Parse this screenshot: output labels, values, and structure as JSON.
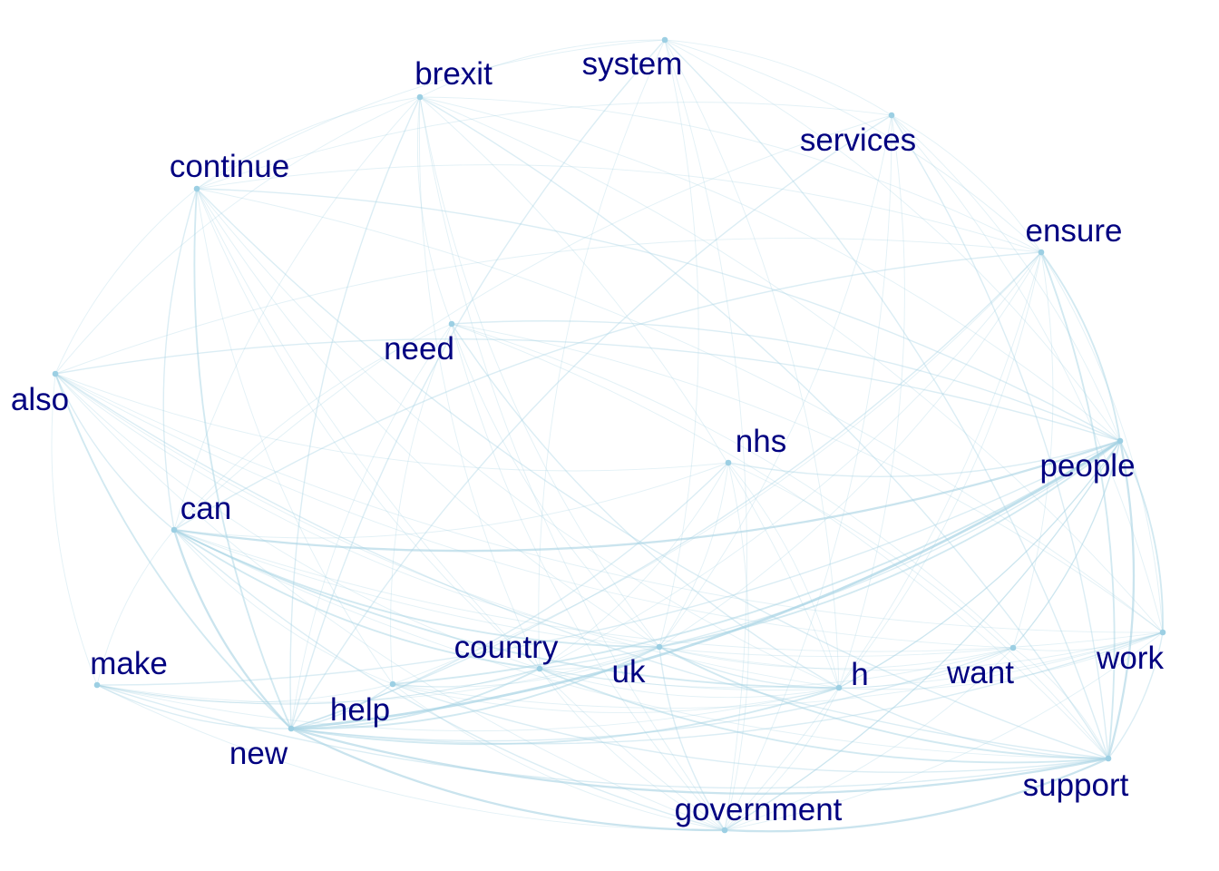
{
  "colors": {
    "edge": "#a9d4e4",
    "node": "#9ccfe3",
    "label": "#000080",
    "background": "#ffffff"
  },
  "nodes": [
    {
      "id": "brexit",
      "label": "brexit"
    },
    {
      "id": "system",
      "label": "system"
    },
    {
      "id": "services",
      "label": "services"
    },
    {
      "id": "continue",
      "label": "continue"
    },
    {
      "id": "ensure",
      "label": "ensure"
    },
    {
      "id": "need",
      "label": "need"
    },
    {
      "id": "also",
      "label": "also"
    },
    {
      "id": "nhs",
      "label": "nhs"
    },
    {
      "id": "people",
      "label": "people"
    },
    {
      "id": "can",
      "label": "can"
    },
    {
      "id": "country",
      "label": "country"
    },
    {
      "id": "make",
      "label": "make"
    },
    {
      "id": "uk",
      "label": "uk"
    },
    {
      "id": "h",
      "label": "h"
    },
    {
      "id": "want",
      "label": "want"
    },
    {
      "id": "work",
      "label": "work"
    },
    {
      "id": "help",
      "label": "help"
    },
    {
      "id": "new",
      "label": "new"
    },
    {
      "id": "support",
      "label": "support"
    },
    {
      "id": "government",
      "label": "government"
    }
  ],
  "edges": [
    [
      "new",
      "people",
      5
    ],
    [
      "new",
      "can",
      4
    ],
    [
      "can",
      "people",
      4
    ],
    [
      "new",
      "support",
      4
    ],
    [
      "new",
      "government",
      4
    ],
    [
      "government",
      "support",
      4
    ],
    [
      "people",
      "support",
      4
    ],
    [
      "uk",
      "people",
      3
    ],
    [
      "can",
      "uk",
      3
    ],
    [
      "can",
      "h",
      3
    ],
    [
      "new",
      "uk",
      3
    ],
    [
      "also",
      "new",
      3
    ],
    [
      "continue",
      "new",
      3
    ],
    [
      "new",
      "h",
      3
    ],
    [
      "people",
      "work",
      3
    ],
    [
      "ensure",
      "support",
      3
    ],
    [
      "ensure",
      "people",
      3
    ],
    [
      "new",
      "country",
      3
    ],
    [
      "can",
      "country",
      3
    ],
    [
      "help",
      "people",
      3
    ],
    [
      "country",
      "support",
      3
    ],
    [
      "uk",
      "support",
      3
    ],
    [
      "need",
      "people",
      2
    ],
    [
      "need",
      "h",
      2
    ],
    [
      "brexit",
      "support",
      2
    ],
    [
      "brexit",
      "new",
      2
    ],
    [
      "system",
      "new",
      2
    ],
    [
      "system",
      "support",
      2
    ],
    [
      "services",
      "support",
      2
    ],
    [
      "services",
      "new",
      2
    ],
    [
      "continue",
      "people",
      2
    ],
    [
      "continue",
      "support",
      2
    ],
    [
      "also",
      "people",
      2
    ],
    [
      "also",
      "support",
      2
    ],
    [
      "also",
      "can",
      2
    ],
    [
      "make",
      "new",
      2
    ],
    [
      "make",
      "people",
      2
    ],
    [
      "make",
      "support",
      2
    ],
    [
      "nhs",
      "people",
      2
    ],
    [
      "nhs",
      "new",
      2
    ],
    [
      "want",
      "people",
      2
    ],
    [
      "want",
      "new",
      2
    ],
    [
      "work",
      "new",
      2
    ],
    [
      "work",
      "support",
      2
    ],
    [
      "h",
      "support",
      2
    ],
    [
      "h",
      "people",
      2
    ],
    [
      "help",
      "new",
      2
    ],
    [
      "help",
      "support",
      2
    ],
    [
      "country",
      "people",
      2
    ],
    [
      "uk",
      "h",
      2
    ],
    [
      "government",
      "people",
      2
    ],
    [
      "government",
      "uk",
      2
    ],
    [
      "government",
      "can",
      2
    ],
    [
      "ensure",
      "new",
      2
    ],
    [
      "ensure",
      "can",
      2
    ],
    [
      "continue",
      "can",
      2
    ],
    [
      "brexit",
      "people",
      1
    ],
    [
      "brexit",
      "can",
      1
    ],
    [
      "brexit",
      "uk",
      1
    ],
    [
      "brexit",
      "h",
      1
    ],
    [
      "brexit",
      "continue",
      1
    ],
    [
      "brexit",
      "system",
      1
    ],
    [
      "brexit",
      "need",
      1
    ],
    [
      "brexit",
      "country",
      1
    ],
    [
      "brexit",
      "government",
      1
    ],
    [
      "brexit",
      "work",
      1
    ],
    [
      "brexit",
      "ensure",
      1
    ],
    [
      "brexit",
      "also",
      1
    ],
    [
      "system",
      "people",
      1
    ],
    [
      "system",
      "h",
      1
    ],
    [
      "system",
      "uk",
      1
    ],
    [
      "system",
      "services",
      1
    ],
    [
      "system",
      "ensure",
      1
    ],
    [
      "system",
      "country",
      1
    ],
    [
      "system",
      "government",
      1
    ],
    [
      "system",
      "continue",
      1
    ],
    [
      "services",
      "people",
      1
    ],
    [
      "services",
      "ensure",
      1
    ],
    [
      "services",
      "h",
      1
    ],
    [
      "services",
      "uk",
      1
    ],
    [
      "services",
      "government",
      1
    ],
    [
      "services",
      "can",
      1
    ],
    [
      "services",
      "work",
      1
    ],
    [
      "services",
      "continue",
      1
    ],
    [
      "continue",
      "h",
      1
    ],
    [
      "continue",
      "uk",
      1
    ],
    [
      "continue",
      "country",
      1
    ],
    [
      "continue",
      "ensure",
      1
    ],
    [
      "continue",
      "government",
      1
    ],
    [
      "continue",
      "help",
      1
    ],
    [
      "continue",
      "also",
      1
    ],
    [
      "continue",
      "work",
      1
    ],
    [
      "ensure",
      "h",
      1
    ],
    [
      "ensure",
      "uk",
      1
    ],
    [
      "ensure",
      "also",
      1
    ],
    [
      "ensure",
      "country",
      1
    ],
    [
      "ensure",
      "government",
      1
    ],
    [
      "ensure",
      "work",
      1
    ],
    [
      "ensure",
      "help",
      1
    ],
    [
      "ensure",
      "want",
      1
    ],
    [
      "need",
      "new",
      1
    ],
    [
      "need",
      "support",
      1
    ],
    [
      "need",
      "can",
      1
    ],
    [
      "need",
      "uk",
      1
    ],
    [
      "need",
      "help",
      1
    ],
    [
      "need",
      "work",
      1
    ],
    [
      "need",
      "government",
      1
    ],
    [
      "need",
      "want",
      1
    ],
    [
      "also",
      "h",
      1
    ],
    [
      "also",
      "uk",
      1
    ],
    [
      "also",
      "country",
      1
    ],
    [
      "also",
      "work",
      1
    ],
    [
      "also",
      "government",
      1
    ],
    [
      "also",
      "make",
      1
    ],
    [
      "also",
      "nhs",
      1
    ],
    [
      "also",
      "want",
      1
    ],
    [
      "nhs",
      "support",
      1
    ],
    [
      "nhs",
      "can",
      1
    ],
    [
      "nhs",
      "uk",
      1
    ],
    [
      "nhs",
      "government",
      1
    ],
    [
      "nhs",
      "h",
      1
    ],
    [
      "nhs",
      "country",
      1
    ],
    [
      "people",
      "h",
      1
    ],
    [
      "people",
      "government",
      1
    ],
    [
      "can",
      "support",
      1
    ],
    [
      "can",
      "work",
      1
    ],
    [
      "can",
      "help",
      1
    ],
    [
      "can",
      "make",
      1
    ],
    [
      "can",
      "want",
      1
    ],
    [
      "country",
      "h",
      1
    ],
    [
      "country",
      "uk",
      1
    ],
    [
      "country",
      "work",
      1
    ],
    [
      "country",
      "help",
      1
    ],
    [
      "country",
      "make",
      1
    ],
    [
      "country",
      "government",
      1
    ],
    [
      "make",
      "uk",
      1
    ],
    [
      "make",
      "h",
      1
    ],
    [
      "make",
      "help",
      1
    ],
    [
      "make",
      "country",
      1
    ],
    [
      "make",
      "government",
      1
    ],
    [
      "uk",
      "work",
      1
    ],
    [
      "uk",
      "want",
      1
    ],
    [
      "uk",
      "help",
      1
    ],
    [
      "h",
      "work",
      1
    ],
    [
      "h",
      "want",
      1
    ],
    [
      "h",
      "government",
      1
    ],
    [
      "h",
      "help",
      1
    ],
    [
      "want",
      "support",
      1
    ],
    [
      "want",
      "work",
      1
    ],
    [
      "want",
      "government",
      1
    ],
    [
      "want",
      "country",
      1
    ],
    [
      "work",
      "government",
      1
    ],
    [
      "work",
      "help",
      1
    ],
    [
      "help",
      "government",
      1
    ],
    [
      "people",
      "want",
      1
    ],
    [
      "can",
      "can2",
      0
    ]
  ]
}
